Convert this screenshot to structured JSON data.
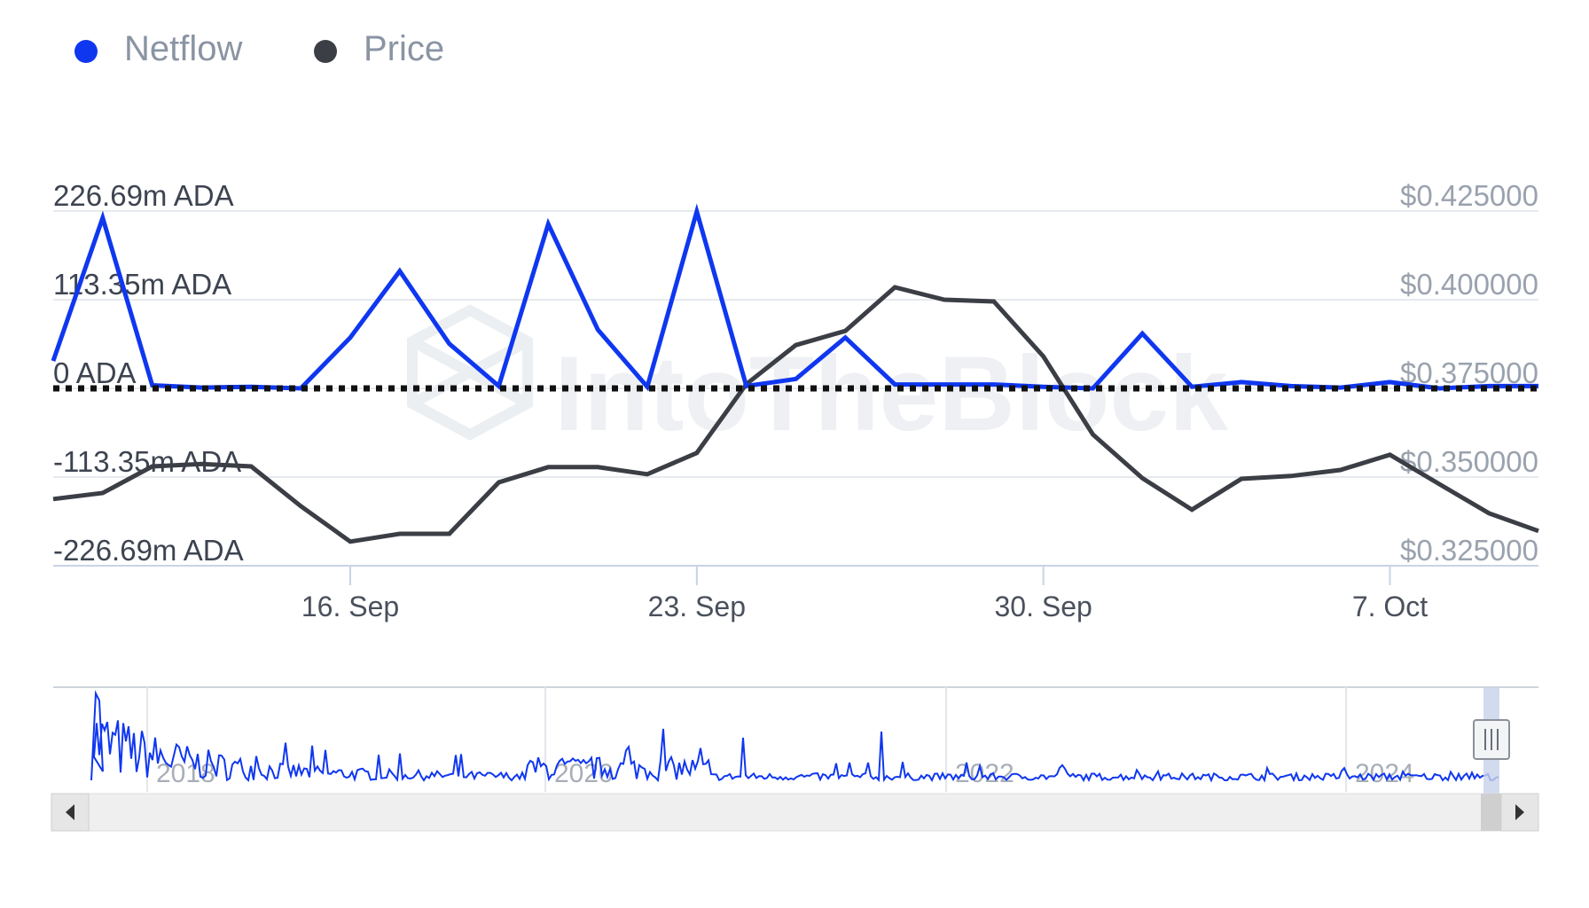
{
  "legend": [
    {
      "label": "Netflow",
      "color": "#0f37f0"
    },
    {
      "label": "Price",
      "color": "#3b3e45"
    }
  ],
  "watermark": "IntoTheBlock",
  "navigator": {
    "year_labels": [
      "2018",
      "2020",
      "2022",
      "2024"
    ],
    "scroll_left_icon": "chevron-left-icon",
    "scroll_right_icon": "chevron-right-icon",
    "handle_icon": "grip-handle-icon"
  },
  "chart_data": {
    "type": "line",
    "left_axis": {
      "ticks": [
        "226.69m ADA",
        "113.35m ADA",
        "0 ADA",
        "-113.35m ADA",
        "-226.69m ADA"
      ],
      "range": [
        -226.69,
        226.69
      ],
      "unit": "m ADA"
    },
    "right_axis": {
      "ticks": [
        "$0.425000",
        "$0.400000",
        "$0.375000",
        "$0.350000",
        "$0.325000"
      ],
      "range": [
        0.325,
        0.425
      ]
    },
    "x_axis": {
      "ticks": [
        "16. Sep",
        "23. Sep",
        "30. Sep",
        "7. Oct"
      ]
    },
    "x": [
      "Sep 10",
      "Sep 11",
      "Sep 12",
      "Sep 13",
      "Sep 14",
      "Sep 15",
      "Sep 16",
      "Sep 17",
      "Sep 18",
      "Sep 19",
      "Sep 20",
      "Sep 21",
      "Sep 22",
      "Sep 23",
      "Sep 24",
      "Sep 25",
      "Sep 26",
      "Sep 27",
      "Sep 28",
      "Sep 29",
      "Sep 30",
      "Oct 1",
      "Oct 2",
      "Oct 3",
      "Oct 4",
      "Oct 5",
      "Oct 6",
      "Oct 7",
      "Oct 8",
      "Oct 9",
      "Oct 10"
    ],
    "series": [
      {
        "name": "Netflow",
        "axis": "left",
        "color": "#0f37f0",
        "values": [
          35,
          218,
          4,
          1,
          2,
          0,
          65,
          150,
          57,
          3,
          210,
          75,
          2,
          226,
          3,
          12,
          65,
          5,
          5,
          5,
          2,
          0,
          70,
          2,
          8,
          3,
          1,
          8,
          0,
          3,
          3
        ]
      },
      {
        "name": "Price",
        "axis": "right",
        "color": "#3b3e45",
        "values": [
          0.3438,
          0.3455,
          0.353,
          0.3537,
          0.353,
          0.3418,
          0.3318,
          0.334,
          0.334,
          0.3485,
          0.3528,
          0.3528,
          0.3508,
          0.3568,
          0.3762,
          0.3872,
          0.3912,
          0.4035,
          0.4,
          0.3995,
          0.384,
          0.362,
          0.3497,
          0.3408,
          0.3495,
          0.3503,
          0.352,
          0.3563,
          0.348,
          0.3398,
          0.3348
        ]
      }
    ],
    "zero_line": "dotted",
    "grid": true,
    "legend_position": "top-left"
  }
}
